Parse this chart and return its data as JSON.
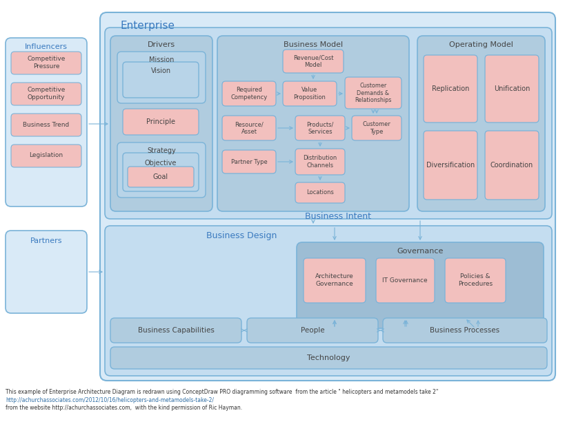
{
  "bg_color": "#ffffff",
  "light_blue": "#c5dff0",
  "medium_blue": "#a8c8e8",
  "dark_blue": "#5b9bd5",
  "pink": "#f2c0be",
  "box_stroke": "#7ab3d8",
  "text_dark": "#444444",
  "text_blue": "#3a7abf",
  "panel_bg": "#d9eaf7",
  "inner_bg": "#c4ddf0",
  "sub_bg": "#b0ccdf",
  "gov_bg": "#9dbdd4",
  "footer_text1": "This example of Enterprise Architecture Diagram is redrawn using ConceptDraw PRO diagramming software  from the article \" helicopters and metamodels take 2\"",
  "footer_link": "http://achurchassociates.com/2012/10/16/helicopters-and-metamodels-take-2/",
  "footer_text2": "from the website http://achurchassociates.com,  with the kind permission of Ric Hayman."
}
